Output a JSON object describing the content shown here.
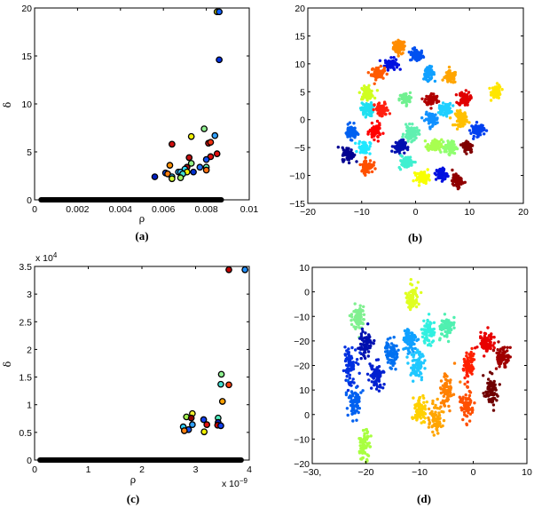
{
  "figure": {
    "panels": [
      {
        "id": "a",
        "label": "(a)"
      },
      {
        "id": "b",
        "label": "(b)"
      },
      {
        "id": "c",
        "label": "(c)"
      },
      {
        "id": "d",
        "label": "(d)"
      }
    ]
  },
  "chart_data": [
    {
      "id": "a",
      "type": "scatter",
      "title": "",
      "panel_label": "(a)",
      "xlabel": "ρ",
      "ylabel": "δ",
      "xlim": [
        0,
        0.01
      ],
      "ylim": [
        0,
        20
      ],
      "xticks": [
        0,
        0.002,
        0.004,
        0.006,
        0.008,
        0.01
      ],
      "xtick_labels": [
        "0",
        "0.002",
        "0.004",
        "0.006",
        "0.008",
        "0.01"
      ],
      "yticks": [
        0,
        5,
        10,
        15,
        20
      ],
      "ytick_labels": [
        "0",
        "5",
        "10",
        "15",
        "20"
      ],
      "grid": false,
      "baseline_band": {
        "x_from": 0.0003,
        "x_to": 0.0087,
        "y": 0,
        "color": "#000000"
      },
      "points": [
        {
          "x": 0.0085,
          "y": 19.6,
          "color": "#f0f000"
        },
        {
          "x": 0.0086,
          "y": 19.6,
          "color": "#1060ff"
        },
        {
          "x": 0.0086,
          "y": 14.6,
          "color": "#0030e0"
        },
        {
          "x": 0.0079,
          "y": 7.4,
          "color": "#90f090"
        },
        {
          "x": 0.0073,
          "y": 6.6,
          "color": "#f0f000"
        },
        {
          "x": 0.0084,
          "y": 6.7,
          "color": "#30a0ff"
        },
        {
          "x": 0.0064,
          "y": 5.8,
          "color": "#d01010"
        },
        {
          "x": 0.0081,
          "y": 5.9,
          "color": "#e01010"
        },
        {
          "x": 0.0082,
          "y": 6.0,
          "color": "#f03010"
        },
        {
          "x": 0.0085,
          "y": 4.8,
          "color": "#e01010"
        },
        {
          "x": 0.0082,
          "y": 4.5,
          "color": "#e01010"
        },
        {
          "x": 0.0072,
          "y": 4.4,
          "color": "#c01010"
        },
        {
          "x": 0.008,
          "y": 4.2,
          "color": "#1050f0"
        },
        {
          "x": 0.0073,
          "y": 3.8,
          "color": "#90f080"
        },
        {
          "x": 0.0063,
          "y": 3.6,
          "color": "#ff9000"
        },
        {
          "x": 0.0071,
          "y": 3.4,
          "color": "#a01010"
        },
        {
          "x": 0.0077,
          "y": 3.4,
          "color": "#2070ff"
        },
        {
          "x": 0.008,
          "y": 3.4,
          "color": "#70ffc0"
        },
        {
          "x": 0.008,
          "y": 3.1,
          "color": "#ff7010"
        },
        {
          "x": 0.007,
          "y": 3.2,
          "color": "#30e0ff"
        },
        {
          "x": 0.0067,
          "y": 2.9,
          "color": "#30b0ff"
        },
        {
          "x": 0.0068,
          "y": 2.9,
          "color": "#30c0ff"
        },
        {
          "x": 0.0071,
          "y": 2.9,
          "color": "#f0f000"
        },
        {
          "x": 0.0074,
          "y": 2.9,
          "color": "#0030d0"
        },
        {
          "x": 0.0061,
          "y": 2.8,
          "color": "#1050f0"
        },
        {
          "x": 0.0062,
          "y": 2.7,
          "color": "#ff8010"
        },
        {
          "x": 0.0069,
          "y": 2.7,
          "color": "#40e0d0"
        },
        {
          "x": 0.0064,
          "y": 2.4,
          "color": "#30d0ff"
        },
        {
          "x": 0.0056,
          "y": 2.4,
          "color": "#0020c0"
        },
        {
          "x": 0.0064,
          "y": 2.2,
          "color": "#d0ff30"
        },
        {
          "x": 0.0068,
          "y": 2.3,
          "color": "#a0f060"
        }
      ]
    },
    {
      "id": "b",
      "type": "scatter",
      "title": "",
      "panel_label": "(b)",
      "xlabel": "",
      "ylabel": "",
      "xlim": [
        -20,
        20
      ],
      "ylim": [
        -15,
        20
      ],
      "xticks": [
        -20,
        -10,
        0,
        10,
        20
      ],
      "xtick_labels": [
        "−20",
        "−10",
        "0",
        "10",
        "20"
      ],
      "yticks": [
        -15,
        -10,
        -5,
        0,
        5,
        10,
        15,
        20
      ],
      "ytick_labels": [
        "−15",
        "−10",
        "−5",
        "0",
        "5",
        "10",
        "15",
        "20"
      ],
      "grid": false,
      "clusters": [
        {
          "cx": -3,
          "cy": 13,
          "sx": 1.0,
          "sy": 1.1,
          "color": "#ff8c00"
        },
        {
          "cx": 0.2,
          "cy": 11.5,
          "sx": 1.1,
          "sy": 1.0,
          "color": "#0050f0"
        },
        {
          "cx": -4.5,
          "cy": 10,
          "sx": 1.1,
          "sy": 0.9,
          "color": "#0010e0"
        },
        {
          "cx": -7,
          "cy": 8.3,
          "sx": 1.1,
          "sy": 1.0,
          "color": "#ff5a00"
        },
        {
          "cx": 2.5,
          "cy": 8.3,
          "sx": 0.9,
          "sy": 1.0,
          "color": "#10a0ff"
        },
        {
          "cx": 6.5,
          "cy": 7.6,
          "sx": 1.0,
          "sy": 1.0,
          "color": "#ffa500"
        },
        {
          "cx": 15,
          "cy": 5,
          "sx": 0.8,
          "sy": 1.1,
          "color": "#ffe600"
        },
        {
          "cx": -9,
          "cy": 4.8,
          "sx": 1.1,
          "sy": 1.0,
          "color": "#d0ff20"
        },
        {
          "cx": -2,
          "cy": 3.7,
          "sx": 0.9,
          "sy": 1.0,
          "color": "#70f090"
        },
        {
          "cx": 3,
          "cy": 3.6,
          "sx": 1.1,
          "sy": 1.0,
          "color": "#b00000"
        },
        {
          "cx": 9,
          "cy": 3.8,
          "sx": 1.0,
          "sy": 1.1,
          "color": "#e00000"
        },
        {
          "cx": -9,
          "cy": 1.8,
          "sx": 1.0,
          "sy": 1.1,
          "color": "#20e0f0"
        },
        {
          "cx": -6.3,
          "cy": 1.7,
          "sx": 1.2,
          "sy": 1.2,
          "color": "#ff2010"
        },
        {
          "cx": 5.5,
          "cy": 1.9,
          "sx": 1.0,
          "sy": 0.9,
          "color": "#20d0ff"
        },
        {
          "cx": 3,
          "cy": 0.1,
          "sx": 1.1,
          "sy": 1.0,
          "color": "#1090ff"
        },
        {
          "cx": 8.5,
          "cy": 0.2,
          "sx": 1.0,
          "sy": 1.2,
          "color": "#ffc000"
        },
        {
          "cx": 11.5,
          "cy": -1.8,
          "sx": 1.1,
          "sy": 1.0,
          "color": "#0040f0"
        },
        {
          "cx": -12,
          "cy": -2.2,
          "sx": 0.9,
          "sy": 1.1,
          "color": "#0060f0"
        },
        {
          "cx": -7.5,
          "cy": -2.2,
          "sx": 0.9,
          "sy": 1.2,
          "color": "#ff0000"
        },
        {
          "cx": -0.8,
          "cy": -2.5,
          "sx": 1.2,
          "sy": 1.2,
          "color": "#60f0b0"
        },
        {
          "cx": -9.5,
          "cy": -5,
          "sx": 1.0,
          "sy": 1.1,
          "color": "#20e8ff"
        },
        {
          "cx": -3,
          "cy": -4.8,
          "sx": 1.0,
          "sy": 1.0,
          "color": "#0010b0"
        },
        {
          "cx": 3.5,
          "cy": -4.7,
          "sx": 1.2,
          "sy": 1.0,
          "color": "#a8ff50"
        },
        {
          "cx": 6.5,
          "cy": -5,
          "sx": 1.0,
          "sy": 1.0,
          "color": "#90ff70"
        },
        {
          "cx": 9.7,
          "cy": -4.8,
          "sx": 0.9,
          "sy": 1.0,
          "color": "#800000"
        },
        {
          "cx": -12.5,
          "cy": -6.2,
          "sx": 1.0,
          "sy": 1.1,
          "color": "#000090"
        },
        {
          "cx": -9,
          "cy": -8.3,
          "sx": 1.0,
          "sy": 1.1,
          "color": "#ff5000"
        },
        {
          "cx": -1.8,
          "cy": -7.6,
          "sx": 1.2,
          "sy": 1.0,
          "color": "#40f0d0"
        },
        {
          "cx": 1.3,
          "cy": -10.3,
          "sx": 1.1,
          "sy": 0.9,
          "color": "#f8ff00"
        },
        {
          "cx": 4.8,
          "cy": -9.8,
          "sx": 0.9,
          "sy": 1.0,
          "color": "#0010e0"
        },
        {
          "cx": 7.8,
          "cy": -11,
          "sx": 0.9,
          "sy": 1.0,
          "color": "#900000"
        }
      ]
    },
    {
      "id": "c",
      "type": "scatter",
      "title": "",
      "panel_label": "(c)",
      "xlabel": "ρ",
      "ylabel": "δ",
      "x_multiplier_label": "x 10",
      "x_multiplier_exp": "−9",
      "y_multiplier_label": "x 10",
      "y_multiplier_exp": "4",
      "xlim": [
        0,
        4
      ],
      "ylim": [
        0,
        3.5
      ],
      "xticks": [
        0,
        1,
        2,
        3,
        4
      ],
      "xtick_labels": [
        "0",
        "1",
        "2",
        "3",
        "4"
      ],
      "yticks": [
        0,
        0.5,
        1,
        1.5,
        2,
        2.5,
        3,
        3.5
      ],
      "ytick_labels": [
        "0",
        "0.5",
        "1",
        "1.5",
        "2",
        "2.5",
        "3",
        "3.5"
      ],
      "grid": false,
      "baseline_band": {
        "x_from": 0.1,
        "x_to": 3.85,
        "y": 0,
        "color": "#000000"
      },
      "points": [
        {
          "x": 3.62,
          "y": 3.44,
          "color": "#c00000"
        },
        {
          "x": 3.92,
          "y": 3.44,
          "color": "#2090ff"
        },
        {
          "x": 3.48,
          "y": 1.55,
          "color": "#90f090"
        },
        {
          "x": 3.47,
          "y": 1.37,
          "color": "#40e0d0"
        },
        {
          "x": 3.62,
          "y": 1.36,
          "color": "#ff4010"
        },
        {
          "x": 3.5,
          "y": 1.06,
          "color": "#ffa000"
        },
        {
          "x": 2.94,
          "y": 0.84,
          "color": "#f0f030"
        },
        {
          "x": 2.83,
          "y": 0.78,
          "color": "#a0f050"
        },
        {
          "x": 2.92,
          "y": 0.76,
          "color": "#900000"
        },
        {
          "x": 3.15,
          "y": 0.73,
          "color": "#1040f0"
        },
        {
          "x": 3.42,
          "y": 0.76,
          "color": "#50f0c0"
        },
        {
          "x": 3.42,
          "y": 0.68,
          "color": "#0020c0"
        },
        {
          "x": 2.94,
          "y": 0.64,
          "color": "#30a0ff"
        },
        {
          "x": 3.21,
          "y": 0.64,
          "color": "#e01010"
        },
        {
          "x": 3.41,
          "y": 0.63,
          "color": "#d00000"
        },
        {
          "x": 3.47,
          "y": 0.62,
          "color": "#1040f0"
        },
        {
          "x": 2.77,
          "y": 0.6,
          "color": "#30d0ff"
        },
        {
          "x": 2.87,
          "y": 0.55,
          "color": "#1050f0"
        },
        {
          "x": 2.79,
          "y": 0.53,
          "color": "#ff8010"
        },
        {
          "x": 3.16,
          "y": 0.51,
          "color": "#f0f000"
        }
      ]
    },
    {
      "id": "d",
      "type": "scatter",
      "title": "",
      "panel_label": "(d)",
      "xlabel": "",
      "ylabel": "",
      "xlim": [
        -30,
        10
      ],
      "xticks": [
        -30,
        -20,
        -10,
        0,
        10
      ],
      "xtick_labels": [
        "−30,",
        "−20",
        "−10",
        "0",
        "10"
      ],
      "ytick_labels": [
        "10",
        "0",
        "−10",
        "−20",
        "−20",
        "10",
        "0",
        "−10",
        "−20"
      ],
      "grid": false,
      "note": "y-axis tick labels are reproduced as printed (non-monotonic); positions below use tick-index units, 0 = top tick, 8 = bottom tick",
      "clusters": [
        {
          "cx": -11.5,
          "cy": 1.3,
          "sx": 0.9,
          "sy": 0.45,
          "color": "#e0ff20"
        },
        {
          "cx": -21.5,
          "cy": 2.0,
          "sx": 1.1,
          "sy": 0.4,
          "color": "#80f090"
        },
        {
          "cx": -5,
          "cy": 2.45,
          "sx": 1.0,
          "sy": 0.4,
          "color": "#50f0b0"
        },
        {
          "cx": -8.3,
          "cy": 2.65,
          "sx": 1.0,
          "sy": 0.4,
          "color": "#30f0e0"
        },
        {
          "cx": -11.8,
          "cy": 3.0,
          "sx": 1.0,
          "sy": 0.4,
          "color": "#10a0ff"
        },
        {
          "cx": 2.3,
          "cy": 3.1,
          "sx": 1.1,
          "sy": 0.35,
          "color": "#e80000"
        },
        {
          "cx": -20,
          "cy": 3.15,
          "sx": 1.0,
          "sy": 0.45,
          "color": "#0010b0"
        },
        {
          "cx": 5.5,
          "cy": 3.6,
          "sx": 1.0,
          "sy": 0.4,
          "color": "#a00000"
        },
        {
          "cx": -15,
          "cy": 3.5,
          "sx": 1.1,
          "sy": 0.4,
          "color": "#0070f0"
        },
        {
          "cx": -0.8,
          "cy": 3.9,
          "sx": 1.0,
          "sy": 0.5,
          "color": "#ff2000"
        },
        {
          "cx": -10.5,
          "cy": 4.0,
          "sx": 1.1,
          "sy": 0.5,
          "color": "#20c8ff"
        },
        {
          "cx": -23,
          "cy": 4.1,
          "sx": 1.0,
          "sy": 0.6,
          "color": "#0030e0"
        },
        {
          "cx": -18,
          "cy": 4.4,
          "sx": 1.0,
          "sy": 0.45,
          "color": "#0020d0"
        },
        {
          "cx": 3.3,
          "cy": 5.0,
          "sx": 1.0,
          "sy": 0.5,
          "color": "#700000"
        },
        {
          "cx": -5,
          "cy": 5.0,
          "sx": 1.0,
          "sy": 0.6,
          "color": "#ff8000"
        },
        {
          "cx": -22,
          "cy": 5.5,
          "sx": 1.0,
          "sy": 0.55,
          "color": "#0060f0"
        },
        {
          "cx": -1.3,
          "cy": 5.6,
          "sx": 1.0,
          "sy": 0.5,
          "color": "#ff5000"
        },
        {
          "cx": -10,
          "cy": 5.8,
          "sx": 1.0,
          "sy": 0.45,
          "color": "#ffd000"
        },
        {
          "cx": -7,
          "cy": 6.1,
          "sx": 1.0,
          "sy": 0.5,
          "color": "#ffa500"
        },
        {
          "cx": -20.3,
          "cy": 7.3,
          "sx": 0.9,
          "sy": 0.5,
          "color": "#a8ff40"
        }
      ]
    }
  ]
}
